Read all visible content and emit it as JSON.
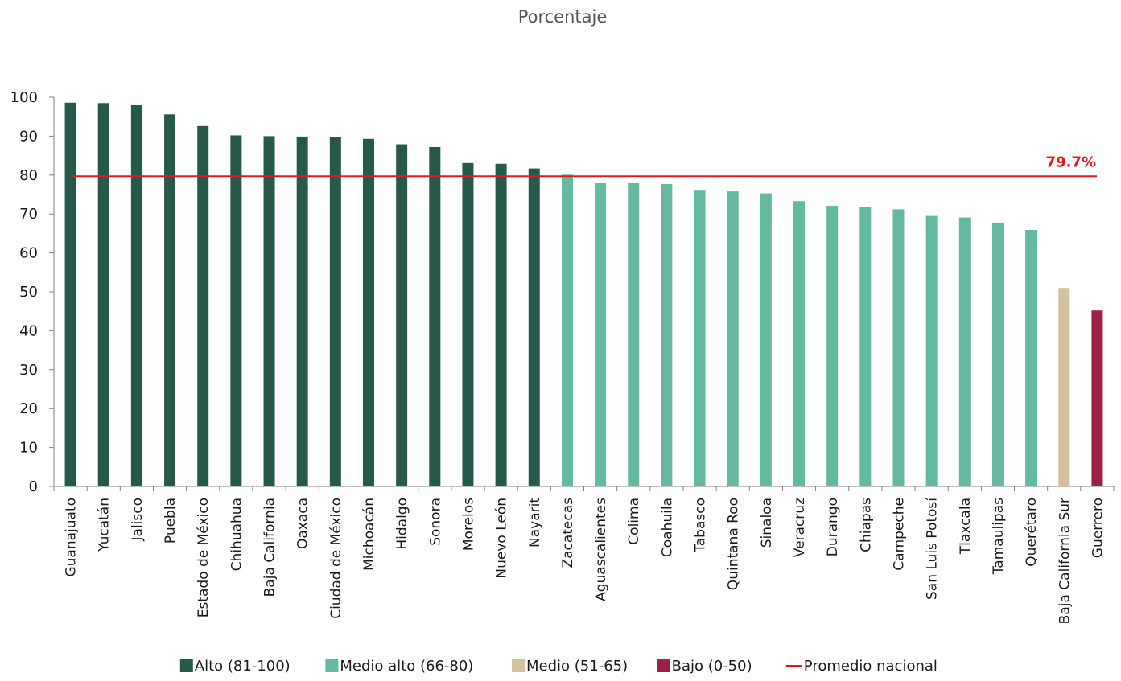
{
  "chart_data": {
    "type": "bar",
    "title": "Porcentaje",
    "xlabel": "",
    "ylabel": "",
    "ylim": [
      0,
      100
    ],
    "yticks": [
      "0",
      "10",
      "20",
      "30",
      "40",
      "50",
      "60",
      "70",
      "80",
      "90",
      "100"
    ],
    "grid": false,
    "categories": [
      "Guanajuato",
      "Yucatán",
      "Jalisco",
      "Puebla",
      "Estado de México",
      "Chihuahua",
      "Baja California",
      "Oaxaca",
      "Ciudad de México",
      "Michoacán",
      "Hidalgo",
      "Sonora",
      "Morelos",
      "Nuevo León",
      "Nayarit",
      "Zacatecas",
      "Aguascalientes",
      "Colima",
      "Coahuila",
      "Tabasco",
      "Quintana Roo",
      "Sinaloa",
      "Veracruz",
      "Durango",
      "Chiapas",
      "Campeche",
      "San Luis Potosí",
      "Tlaxcala",
      "Tamaulipas",
      "Querétaro",
      "Baja California Sur",
      "Guerrero"
    ],
    "values": [
      98.6,
      98.5,
      98.0,
      95.6,
      92.6,
      90.2,
      90.0,
      89.9,
      89.8,
      89.3,
      87.9,
      87.2,
      83.1,
      82.9,
      81.7,
      80.1,
      78.0,
      78.0,
      77.7,
      76.2,
      75.8,
      75.3,
      73.3,
      72.1,
      71.8,
      71.2,
      69.5,
      69.1,
      67.8,
      65.9,
      51.0,
      45.2
    ],
    "groups": [
      "alto",
      "alto",
      "alto",
      "alto",
      "alto",
      "alto",
      "alto",
      "alto",
      "alto",
      "alto",
      "alto",
      "alto",
      "alto",
      "alto",
      "alto",
      "medio_alto",
      "medio_alto",
      "medio_alto",
      "medio_alto",
      "medio_alto",
      "medio_alto",
      "medio_alto",
      "medio_alto",
      "medio_alto",
      "medio_alto",
      "medio_alto",
      "medio_alto",
      "medio_alto",
      "medio_alto",
      "medio_alto",
      "medio",
      "bajo"
    ],
    "average": {
      "value": 79.7,
      "label": "79.7%",
      "color": "#e31a1c"
    },
    "legend": {
      "placement": "bottom",
      "items": [
        {
          "key": "alto",
          "label": "Alto (81-100)",
          "color": "#27594a",
          "kind": "box"
        },
        {
          "key": "medio_alto",
          "label": "Medio alto (66-80)",
          "color": "#65b9a0",
          "kind": "box"
        },
        {
          "key": "medio",
          "label": "Medio (51-65)",
          "color": "#d4c29e",
          "kind": "box"
        },
        {
          "key": "bajo",
          "label": "Bajo (0-50)",
          "color": "#9b2247",
          "kind": "box"
        },
        {
          "key": "promedio",
          "label": "Promedio nacional",
          "color": "#e31a1c",
          "kind": "line"
        }
      ]
    }
  }
}
